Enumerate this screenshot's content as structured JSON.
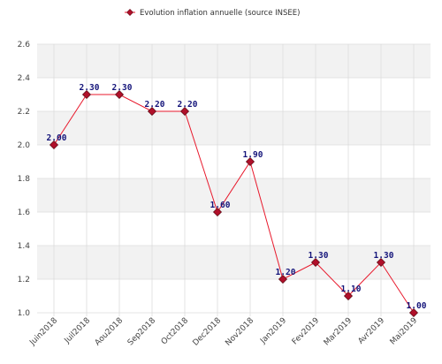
{
  "chart_data": {
    "type": "line",
    "title": "",
    "xlabel": "",
    "ylabel": "",
    "categories": [
      "Juin2018",
      "Juil2018",
      "Aou2018",
      "Sep2018",
      "Oct2018",
      "Dec2018",
      "Nov2018",
      "Jan2019",
      "Fev2019",
      "Mar2019",
      "Avr2019",
      "Mai2019"
    ],
    "series": [
      {
        "name": "Evolution inflation annuelle (source INSEE)",
        "values": [
          2.0,
          2.3,
          2.3,
          2.2,
          2.2,
          1.6,
          1.9,
          1.2,
          1.3,
          1.1,
          1.3,
          1.0
        ],
        "labels": [
          "2.00",
          "2.30",
          "2.30",
          "2.20",
          "2.20",
          "1.60",
          "1.90",
          "1.20",
          "1.30",
          "1.10",
          "1.30",
          "1.00"
        ],
        "line_color": "#e8192c",
        "marker_color": "#b0102a"
      }
    ],
    "ylim": [
      1.0,
      2.6
    ],
    "yticks": [
      "1.0",
      "1.2",
      "1.4",
      "1.6",
      "1.8",
      "2.0",
      "2.2",
      "2.4",
      "2.6"
    ],
    "grid": true,
    "legend_position": "top-center",
    "band_color": "#f2f2f2",
    "grid_color": "#dcdcdc"
  }
}
